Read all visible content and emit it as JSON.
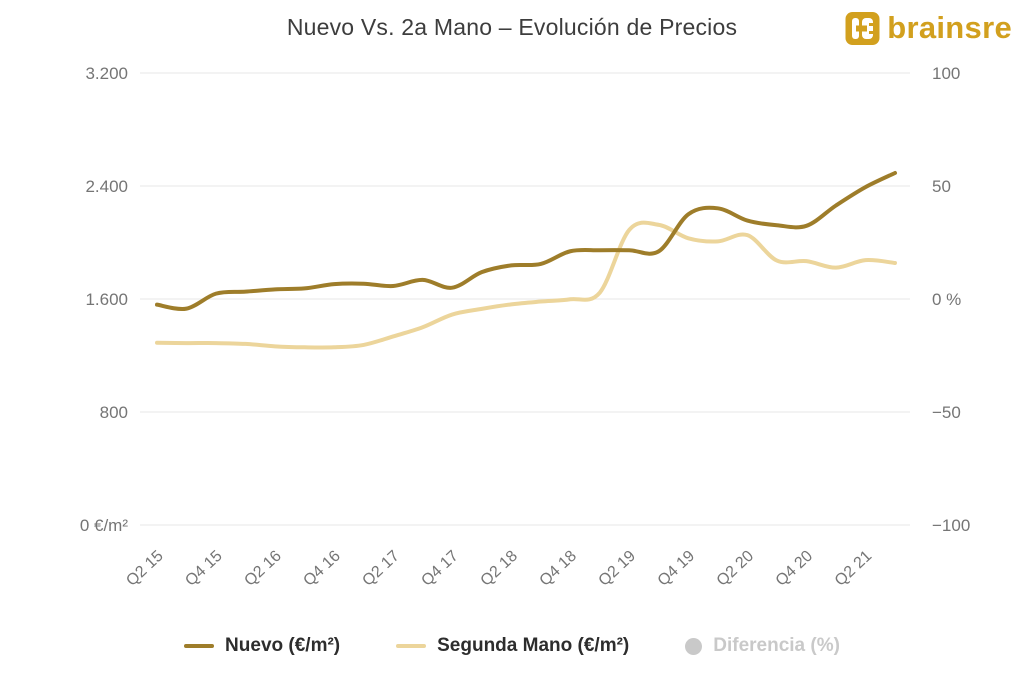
{
  "header": {
    "title": "Nuevo Vs. 2a Mano – Evolución de Precios",
    "logo_text": "brainsre"
  },
  "colors": {
    "nuevo": "#9e7d2a",
    "segunda_mano": "#ecd59b",
    "disabled": "#c9c9c9",
    "grid": "#ececec",
    "axis_text": "#757575",
    "title_text": "#3d3d3d",
    "legend_text": "#2d2d2d",
    "logo_gold": "#d2a01e"
  },
  "chart_data": {
    "type": "line",
    "title": "Nuevo Vs. 2a Mano – Evolución de Precios",
    "grid": true,
    "legend_position": "bottom",
    "categories": [
      "Q2 15",
      "Q3 15",
      "Q4 15",
      "Q1 16",
      "Q2 16",
      "Q3 16",
      "Q4 16",
      "Q1 17",
      "Q2 17",
      "Q3 17",
      "Q4 17",
      "Q1 18",
      "Q2 18",
      "Q3 18",
      "Q4 18",
      "Q1 19",
      "Q2 19",
      "Q3 19",
      "Q4 19",
      "Q1 20",
      "Q2 20",
      "Q3 20",
      "Q4 20",
      "Q1 21",
      "Q2 21",
      "Q3 21"
    ],
    "x_labels_shown": [
      "Q2 15",
      "Q4 15",
      "Q2 16",
      "Q4 16",
      "Q2 17",
      "Q4 17",
      "Q2 18",
      "Q4 18",
      "Q2 19",
      "Q4 19",
      "Q2 20",
      "Q4 20",
      "Q2 21"
    ],
    "series": [
      {
        "name": "Nuevo (€/m²)",
        "color": "#9e7d2a",
        "visible": true,
        "values": [
          1560,
          1532,
          1638,
          1652,
          1668,
          1675,
          1705,
          1708,
          1692,
          1735,
          1680,
          1790,
          1838,
          1848,
          1938,
          1945,
          1945,
          1938,
          2200,
          2242,
          2155,
          2122,
          2118,
          2262,
          2392,
          2492
        ]
      },
      {
        "name": "Segunda Mano (€/m²)",
        "color": "#ecd59b",
        "visible": true,
        "values": [
          1290,
          1288,
          1288,
          1282,
          1265,
          1258,
          1258,
          1275,
          1335,
          1400,
          1490,
          1530,
          1562,
          1582,
          1598,
          1645,
          2090,
          2125,
          2030,
          2008,
          2052,
          1872,
          1868,
          1822,
          1875,
          1855
        ]
      },
      {
        "name": "Diferencia (%)",
        "color": "#c9c9c9",
        "visible": false,
        "values": []
      }
    ],
    "y_axis_left": {
      "range": [
        0,
        3200
      ],
      "ticks": [
        {
          "value": 3200,
          "label": "3.200"
        },
        {
          "value": 2400,
          "label": "2.400"
        },
        {
          "value": 1600,
          "label": "1.600"
        },
        {
          "value": 800,
          "label": "800"
        },
        {
          "value": 0,
          "label": "0 €/m²"
        }
      ]
    },
    "y_axis_right": {
      "range": [
        -100,
        100
      ],
      "ticks": [
        {
          "label": "100"
        },
        {
          "label": "50"
        },
        {
          "label": "0 %"
        },
        {
          "label": "−50"
        },
        {
          "label": "−100"
        }
      ]
    }
  },
  "legend": {
    "items": [
      {
        "label": "Nuevo (€/m²)",
        "enabled": true,
        "marker": "line",
        "color": "#9e7d2a"
      },
      {
        "label": "Segunda Mano (€/m²)",
        "enabled": true,
        "marker": "line",
        "color": "#ecd59b"
      },
      {
        "label": "Diferencia (%)",
        "enabled": false,
        "marker": "circle",
        "color": "#c9c9c9"
      }
    ]
  }
}
